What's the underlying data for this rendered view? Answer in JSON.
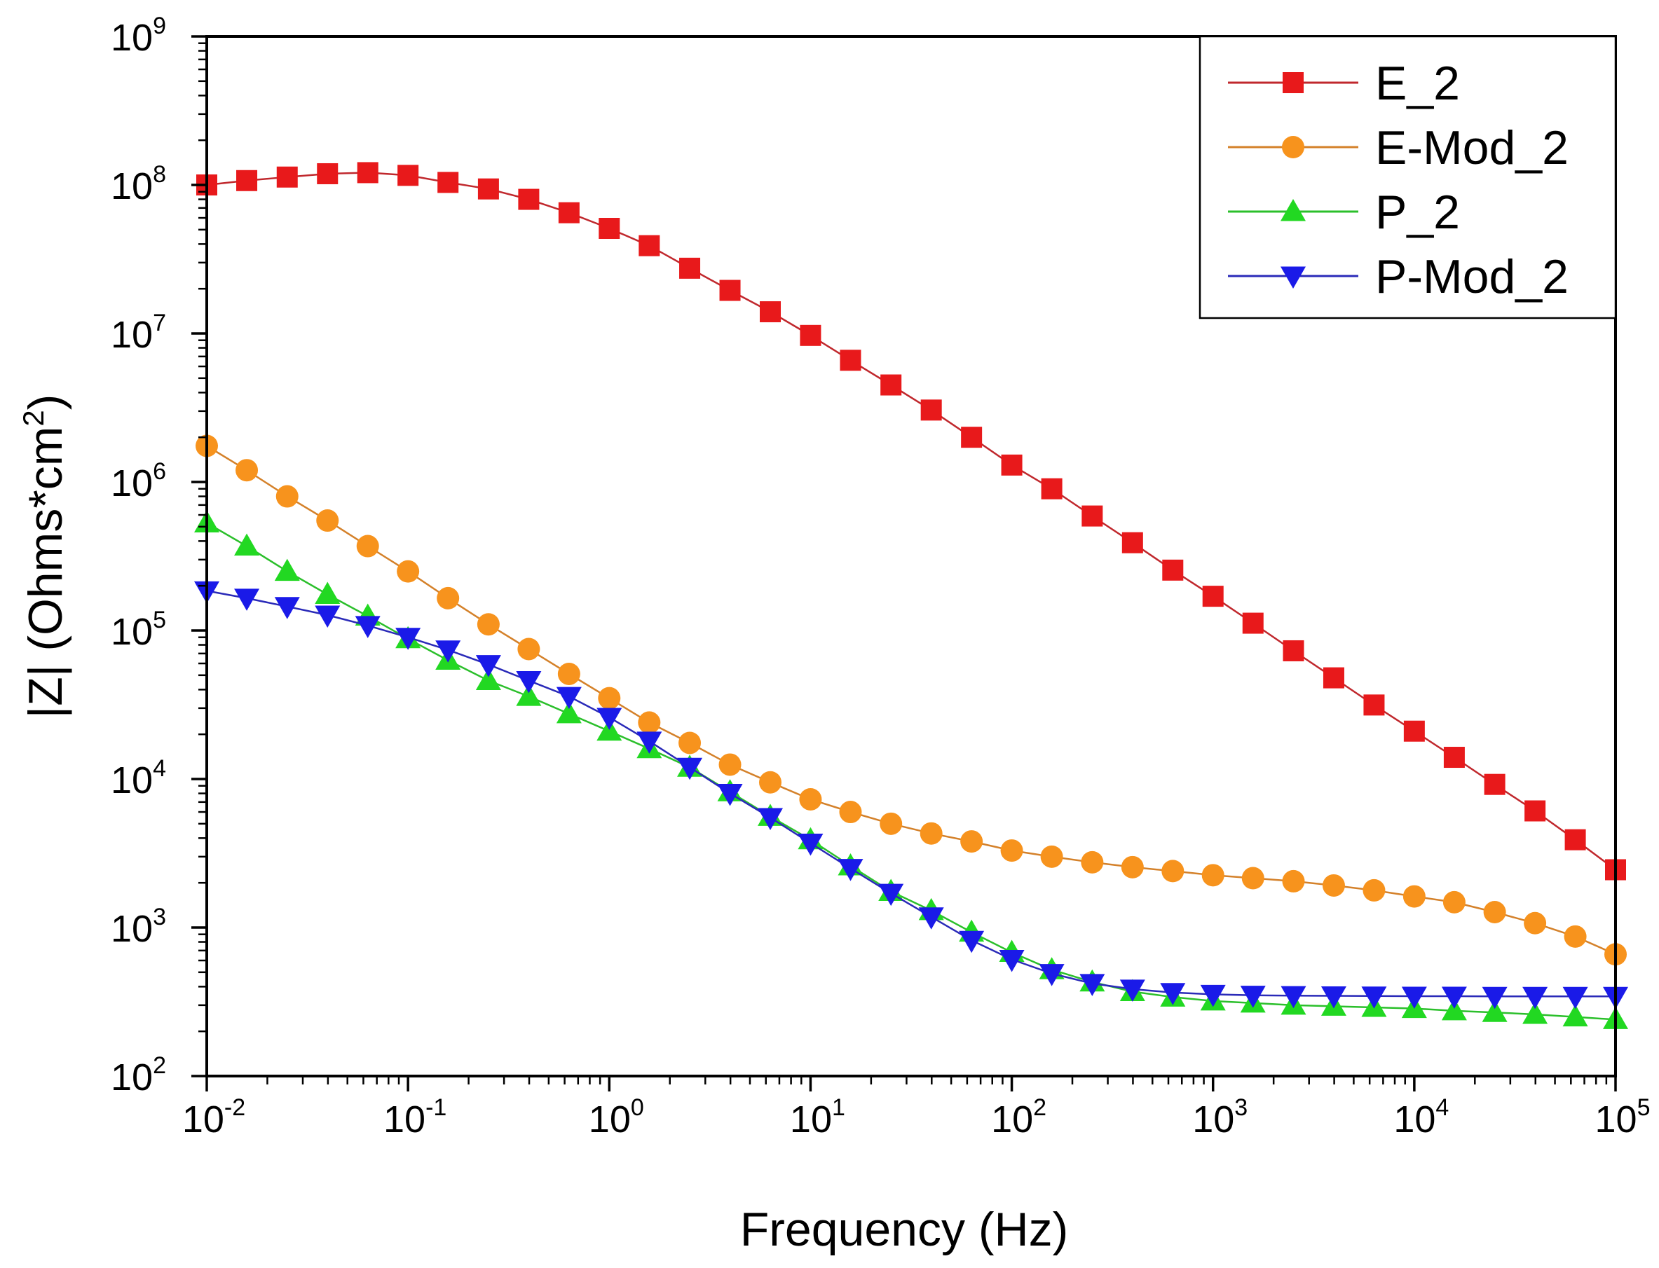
{
  "chart_data": {
    "type": "line",
    "title": "",
    "xlabel": "Frequency (Hz)",
    "ylabel": "|Z| (Ohms*cm2)",
    "ylabel_main": "|Z| (Ohms*cm",
    "ylabel_sup": "2",
    "ylabel_close": ")",
    "xscale": "log",
    "yscale": "log",
    "xlim": [
      0.01,
      100000
    ],
    "ylim": [
      100,
      1000000000
    ],
    "legend_position": "top-right",
    "x_ticks": [
      {
        "base": "10",
        "exp": "-2"
      },
      {
        "base": "10",
        "exp": "-1"
      },
      {
        "base": "10",
        "exp": "0"
      },
      {
        "base": "10",
        "exp": "1"
      },
      {
        "base": "10",
        "exp": "2"
      },
      {
        "base": "10",
        "exp": "3"
      },
      {
        "base": "10",
        "exp": "4"
      },
      {
        "base": "10",
        "exp": "5"
      }
    ],
    "y_ticks": [
      {
        "base": "10",
        "exp": "2"
      },
      {
        "base": "10",
        "exp": "3"
      },
      {
        "base": "10",
        "exp": "4"
      },
      {
        "base": "10",
        "exp": "5"
      },
      {
        "base": "10",
        "exp": "6"
      },
      {
        "base": "10",
        "exp": "7"
      },
      {
        "base": "10",
        "exp": "8"
      },
      {
        "base": "10",
        "exp": "9"
      }
    ],
    "x": [
      0.01,
      0.0158,
      0.0251,
      0.0398,
      0.0631,
      0.1,
      0.158,
      0.251,
      0.398,
      0.631,
      1,
      1.58,
      2.51,
      3.98,
      6.31,
      10,
      15.8,
      25.1,
      39.8,
      63.1,
      100,
      158,
      251,
      398,
      631,
      1000,
      1580,
      2510,
      3980,
      6310,
      10000,
      15800,
      25100,
      39800,
      63100,
      100000
    ],
    "series": [
      {
        "name": "E_2",
        "color": "#e8191b",
        "line_color": "#c0282d",
        "marker": "square",
        "values": [
          100000000,
          107000000,
          113000000,
          119000000,
          121000000,
          116000000,
          104000000,
          94000000,
          80000000,
          65000000,
          51000000,
          39000000,
          27500000,
          19500000,
          14000000,
          9700000,
          6600000,
          4500000,
          3050000,
          2000000,
          1300000,
          900000,
          590000,
          390000,
          255000,
          170000,
          112000,
          73000,
          48000,
          31500,
          21000,
          14000,
          9200,
          6100,
          3900,
          2450
        ]
      },
      {
        "name": "E-Mod_2",
        "color": "#f7931d",
        "line_color": "#d4812a",
        "marker": "circle",
        "values": [
          1750000,
          1200000,
          800000,
          550000,
          370000,
          250000,
          165000,
          110000,
          75000,
          51000,
          35000,
          24000,
          17500,
          12500,
          9500,
          7300,
          6000,
          5000,
          4300,
          3800,
          3300,
          3000,
          2750,
          2550,
          2400,
          2250,
          2150,
          2050,
          1920,
          1780,
          1620,
          1480,
          1270,
          1070,
          870,
          660
        ]
      },
      {
        "name": "P_2",
        "color": "#22d822",
        "line_color": "#2bbf2b",
        "marker": "triangle-up",
        "values": [
          530000,
          370000,
          250000,
          175000,
          125000,
          88000,
          63000,
          46000,
          36000,
          27500,
          21000,
          16000,
          12000,
          8200,
          5600,
          3900,
          2600,
          1750,
          1300,
          930,
          680,
          520,
          430,
          370,
          340,
          320,
          310,
          300,
          295,
          290,
          285,
          275,
          268,
          260,
          250,
          240
        ]
      },
      {
        "name": "P-Mod_2",
        "color": "#1a1ae8",
        "line_color": "#2a2ab8",
        "marker": "triangle-down",
        "values": [
          185000,
          165000,
          145000,
          127000,
          108000,
          90000,
          74000,
          59000,
          46000,
          36000,
          26000,
          18000,
          12000,
          8000,
          5500,
          3700,
          2500,
          1700,
          1180,
          820,
          610,
          490,
          420,
          385,
          365,
          355,
          350,
          348,
          347,
          346,
          345,
          345,
          344,
          344,
          344,
          344
        ]
      }
    ]
  }
}
